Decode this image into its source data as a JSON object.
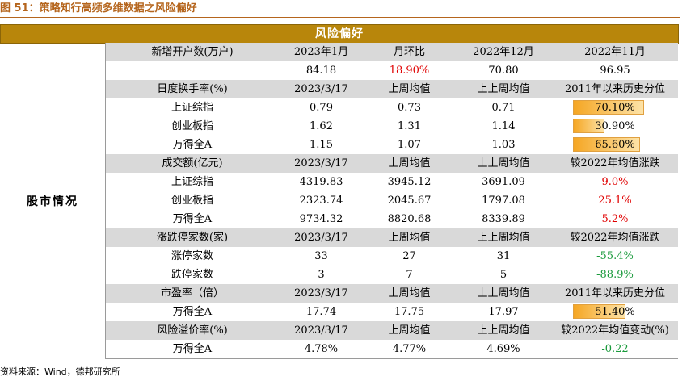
{
  "figure_title": "图 51：策略知行高频多维数据之风险偏好",
  "banner": "风险偏好",
  "side_label": "股市情况",
  "source": "资料来源：Wind，德邦研究所",
  "colors": {
    "banner_bg": "#b8860b",
    "header_bg": "#d9d9d9",
    "positive": "#e00000",
    "negative": "#1a9a3c",
    "bar": "#f5a623"
  },
  "rows": [
    {
      "kind": "hdr",
      "cells": [
        "新增开户数(万户)",
        "2023年1月",
        "月环比",
        "2022年12月",
        "2022年11月"
      ]
    },
    {
      "kind": "data",
      "cells": [
        "",
        "84.18",
        "18.90%",
        "70.80",
        "96.95"
      ],
      "classes": [
        "",
        "",
        "red",
        "",
        ""
      ]
    },
    {
      "kind": "hdr",
      "cells": [
        "日度换手率(%)",
        "2023/3/17",
        "上周均值",
        "上上周均值",
        "2011年以来历史分位"
      ]
    },
    {
      "kind": "data",
      "cells": [
        "上证综指",
        "0.79",
        "0.73",
        "0.71",
        "70.10%"
      ],
      "bar": 0.701
    },
    {
      "kind": "data",
      "cells": [
        "创业板指",
        "1.62",
        "1.31",
        "1.14",
        "30.90%"
      ],
      "bar": 0.309
    },
    {
      "kind": "data",
      "cells": [
        "万得全A",
        "1.15",
        "1.07",
        "1.03",
        "65.60%"
      ],
      "bar": 0.656
    },
    {
      "kind": "hdr",
      "cells": [
        "成交额(亿元)",
        "2023/3/17",
        "上周均值",
        "上上周均值",
        "较2022年均值涨跌"
      ]
    },
    {
      "kind": "data",
      "cells": [
        "上证综指",
        "4319.83",
        "3945.12",
        "3691.09",
        "9.0%"
      ],
      "classes": [
        "",
        "",
        "",
        "",
        "red"
      ]
    },
    {
      "kind": "data",
      "cells": [
        "创业板指",
        "2323.74",
        "2045.67",
        "1797.08",
        "25.1%"
      ],
      "classes": [
        "",
        "",
        "",
        "",
        "red"
      ]
    },
    {
      "kind": "data",
      "cells": [
        "万得全A",
        "9734.32",
        "8820.68",
        "8339.89",
        "5.2%"
      ],
      "classes": [
        "",
        "",
        "",
        "",
        "red"
      ]
    },
    {
      "kind": "hdr",
      "cells": [
        "涨跌停家数(家)",
        "2023/3/17",
        "上周均值",
        "上上周均值",
        "较2022年均值涨跌"
      ]
    },
    {
      "kind": "data",
      "cells": [
        "涨停家数",
        "33",
        "27",
        "31",
        "-55.4%"
      ],
      "classes": [
        "",
        "",
        "",
        "",
        "green"
      ]
    },
    {
      "kind": "data",
      "cells": [
        "跌停家数",
        "3",
        "7",
        "5",
        "-88.9%"
      ],
      "classes": [
        "",
        "",
        "",
        "",
        "green"
      ]
    },
    {
      "kind": "hdr",
      "cells": [
        "市盈率（倍）",
        "2023/3/17",
        "上周均值",
        "上上周均值",
        "2011年以来历史分位"
      ]
    },
    {
      "kind": "data",
      "cells": [
        "万得全A",
        "17.74",
        "17.75",
        "17.97",
        "51.40%"
      ],
      "bar": 0.514
    },
    {
      "kind": "hdr",
      "cells": [
        "风险溢价率(%)",
        "2023/3/17",
        "上周均值",
        "上上周均值",
        "较2022年均值变动(%)"
      ]
    },
    {
      "kind": "data",
      "cells": [
        "万得全A",
        "4.78%",
        "4.77%",
        "4.69%",
        "-0.22"
      ],
      "classes": [
        "",
        "",
        "",
        "",
        "green"
      ]
    }
  ]
}
